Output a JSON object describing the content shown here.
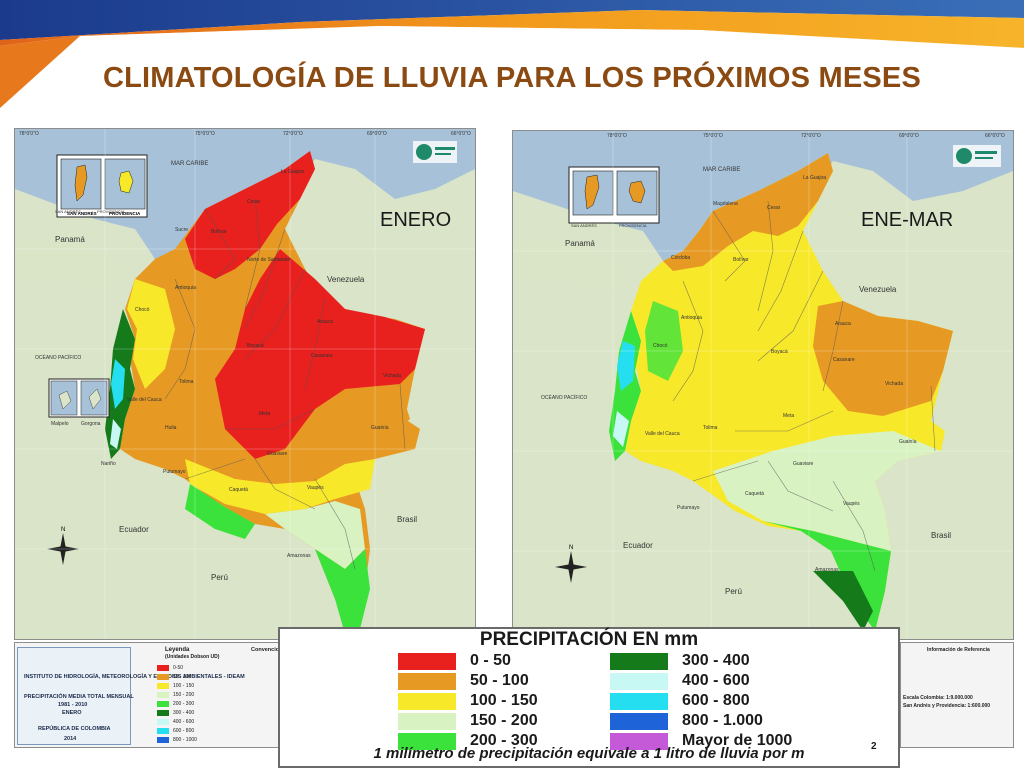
{
  "slide": {
    "title": "CLIMATOLOGÍA DE LLUVIA PARA LOS PRÓXIMOS MESES"
  },
  "maps": [
    {
      "period_label": "ENERO",
      "place_labels": [
        "MAR CARIBE",
        "Panamá",
        "Venezuela",
        "OCÉANO PACÍFICO",
        "Ecuador",
        "Perú",
        "Brasil",
        "SAN ANDRÉS",
        "PROVIDENCIA",
        "Malpelo",
        "Gorgona",
        "La Guajira",
        "Cesar",
        "Sucre",
        "Bolívar",
        "Norte de Santander",
        "Antioquia",
        "Chocó",
        "Arauca",
        "Casanare",
        "Boyacá",
        "Vichada",
        "Meta",
        "Guainía",
        "Guaviare",
        "Caquetá",
        "Vaupés",
        "Amazonas",
        "Putumayo",
        "Nariño",
        "Valle del Cauca",
        "Huila",
        "Tolima"
      ],
      "longitude_ticks": [
        "78°0'0\"O",
        "75°0'0\"O",
        "72°0'0\"O",
        "69°0'0\"O",
        "66°0'0\"O"
      ]
    },
    {
      "period_label": "ENE-MAR",
      "place_labels": [
        "MAR CARIBE",
        "Panamá",
        "Venezuela",
        "OCÉANO PACÍFICO",
        "Ecuador",
        "Perú",
        "Brasil",
        "SAN ANDRÉS",
        "PROVIDENCIA",
        "La Guajira",
        "Magdalena",
        "Cesar",
        "Bolívar",
        "Córdoba",
        "Antioquia",
        "Chocó",
        "Arauca",
        "Casanare",
        "Boyacá",
        "Vichada",
        "Meta",
        "Guainía",
        "Guaviare",
        "Caquetá",
        "Vaupés",
        "Amazonas",
        "Putumayo",
        "Valle del Cauca",
        "Tolima"
      ],
      "longitude_ticks": [
        "78°0'0\"O",
        "75°0'0\"O",
        "72°0'0\"O",
        "69°0'0\"O",
        "66°0'0\"O"
      ]
    }
  ],
  "info_panel": {
    "institute": "INSTITUTO DE HIDROLOGÍA, METEOROLOGÍA Y ESTUDIOS AMBIENTALES - IDEAM",
    "map_title": "PRECIPITACIÓN MEDIA TOTAL MENSUAL",
    "years": "1981 - 2010",
    "month": "ENERO",
    "country": "REPÚBLICA DE COLOMBIA",
    "year": "2014",
    "legend_title": "Leyenda",
    "legend_subtitle": "(Unidades Dobson UD)",
    "small_legend": [
      "0-50",
      "50 - 100",
      "100 - 150",
      "150 - 200",
      "200 - 300",
      "300 - 400",
      "400 - 600",
      "600 - 800",
      "800 - 1000"
    ],
    "conventions": "Convenciones",
    "ref_title": "Información de Referencia",
    "scale_colombia": "Escala Colombia: 1:9.000.000",
    "scale_islands": "San Andrés y Providencia: 1:600.000"
  },
  "legend": {
    "title": "PRECIPITACIÓN EN mm",
    "left_items": [
      {
        "label": "0 - 50",
        "color": "#e8201e"
      },
      {
        "label": "50 - 100",
        "color": "#e69a24"
      },
      {
        "label": "100 - 150",
        "color": "#f8e82a"
      },
      {
        "label": "150 - 200",
        "color": "#d8f2c2"
      },
      {
        "label": "200 - 300",
        "color": "#3ce23c"
      }
    ],
    "right_items": [
      {
        "label": "300 - 400",
        "color": "#157a1a"
      },
      {
        "label": "400 - 600",
        "color": "#c8f8f4"
      },
      {
        "label": "600 - 800",
        "color": "#25dff0"
      },
      {
        "label": "800 - 1.000",
        "color": "#1f63d8"
      },
      {
        "label": "Mayor de 1000",
        "color": "#c45ad8"
      }
    ],
    "footnote": "1 milímetro de precipitación equivale a 1 litro de lluvia por m",
    "footnote_sup": "2"
  },
  "colors": {
    "title": "#8a4a12",
    "banner_blue": "#1b3a8c",
    "banner_orange": "#f29a1c",
    "sea": "#a7c2d8",
    "land_neighbor": "#d9e4c8"
  }
}
